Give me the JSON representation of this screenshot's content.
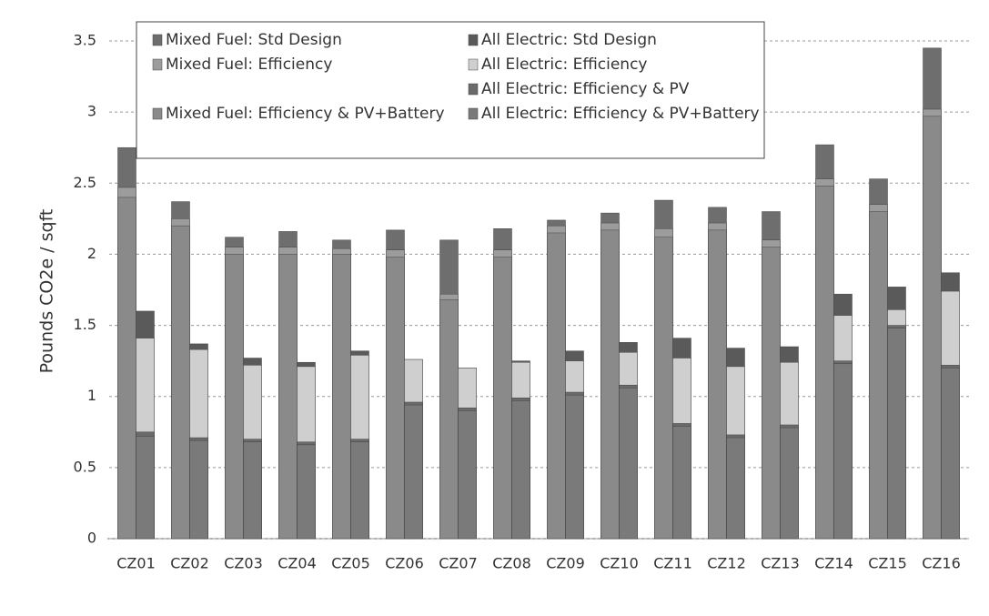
{
  "chart_data": {
    "type": "bar",
    "y_label": "Pounds CO2e / sqft",
    "categories": [
      "CZ01",
      "CZ02",
      "CZ03",
      "CZ04",
      "CZ05",
      "CZ06",
      "CZ07",
      "CZ08",
      "CZ09",
      "CZ10",
      "CZ11",
      "CZ12",
      "CZ13",
      "CZ14",
      "CZ15",
      "CZ16"
    ],
    "series": [
      {
        "name": "Mixed Fuel: Std Design",
        "color": "#6e6e6e",
        "values": [
          2.75,
          2.37,
          2.12,
          2.16,
          2.1,
          2.17,
          2.1,
          2.18,
          2.24,
          2.29,
          2.38,
          2.33,
          2.3,
          2.77,
          2.53,
          3.45
        ]
      },
      {
        "name": "Mixed Fuel: Efficiency",
        "color": "#9c9c9c",
        "values": [
          2.47,
          2.25,
          2.05,
          2.05,
          2.04,
          2.03,
          1.72,
          2.03,
          2.2,
          2.22,
          2.18,
          2.22,
          2.1,
          2.53,
          2.35,
          3.02
        ]
      },
      {
        "name": "Mixed Fuel: Efficiency & PV+Battery",
        "color": "#8a8a8a",
        "values": [
          2.4,
          2.2,
          2.0,
          2.0,
          2.0,
          1.98,
          1.68,
          1.98,
          2.15,
          2.17,
          2.12,
          2.17,
          2.05,
          2.48,
          2.3,
          2.97
        ]
      },
      {
        "name": "All Electric: Std Design",
        "color": "#5a5a5a",
        "values": [
          1.6,
          1.37,
          1.27,
          1.24,
          1.32,
          1.26,
          1.2,
          1.25,
          1.32,
          1.38,
          1.41,
          1.34,
          1.35,
          1.72,
          1.77,
          1.87
        ]
      },
      {
        "name": "All Electric: Efficiency",
        "color": "#cfcfcf",
        "values": [
          1.41,
          1.33,
          1.22,
          1.21,
          1.29,
          1.26,
          1.2,
          1.24,
          1.25,
          1.31,
          1.27,
          1.21,
          1.24,
          1.57,
          1.61,
          1.74
        ]
      },
      {
        "name": "All Electric: Efficiency & PV",
        "color": "#6a6a6a",
        "values": [
          0.75,
          0.71,
          0.7,
          0.68,
          0.7,
          0.96,
          0.92,
          0.99,
          1.03,
          1.08,
          0.81,
          0.73,
          0.8,
          1.25,
          1.5,
          1.22
        ]
      },
      {
        "name": "All Electric: Efficiency & PV+Battery",
        "color": "#7a7a7a",
        "values": [
          0.72,
          0.69,
          0.68,
          0.66,
          0.68,
          0.94,
          0.9,
          0.97,
          1.01,
          1.06,
          0.79,
          0.71,
          0.78,
          1.23,
          1.48,
          1.2
        ]
      }
    ],
    "ylim": [
      0,
      3.5
    ],
    "yticks": [
      0,
      0.5,
      1,
      1.5,
      2,
      2.5,
      3,
      3.5
    ],
    "grid": true
  }
}
